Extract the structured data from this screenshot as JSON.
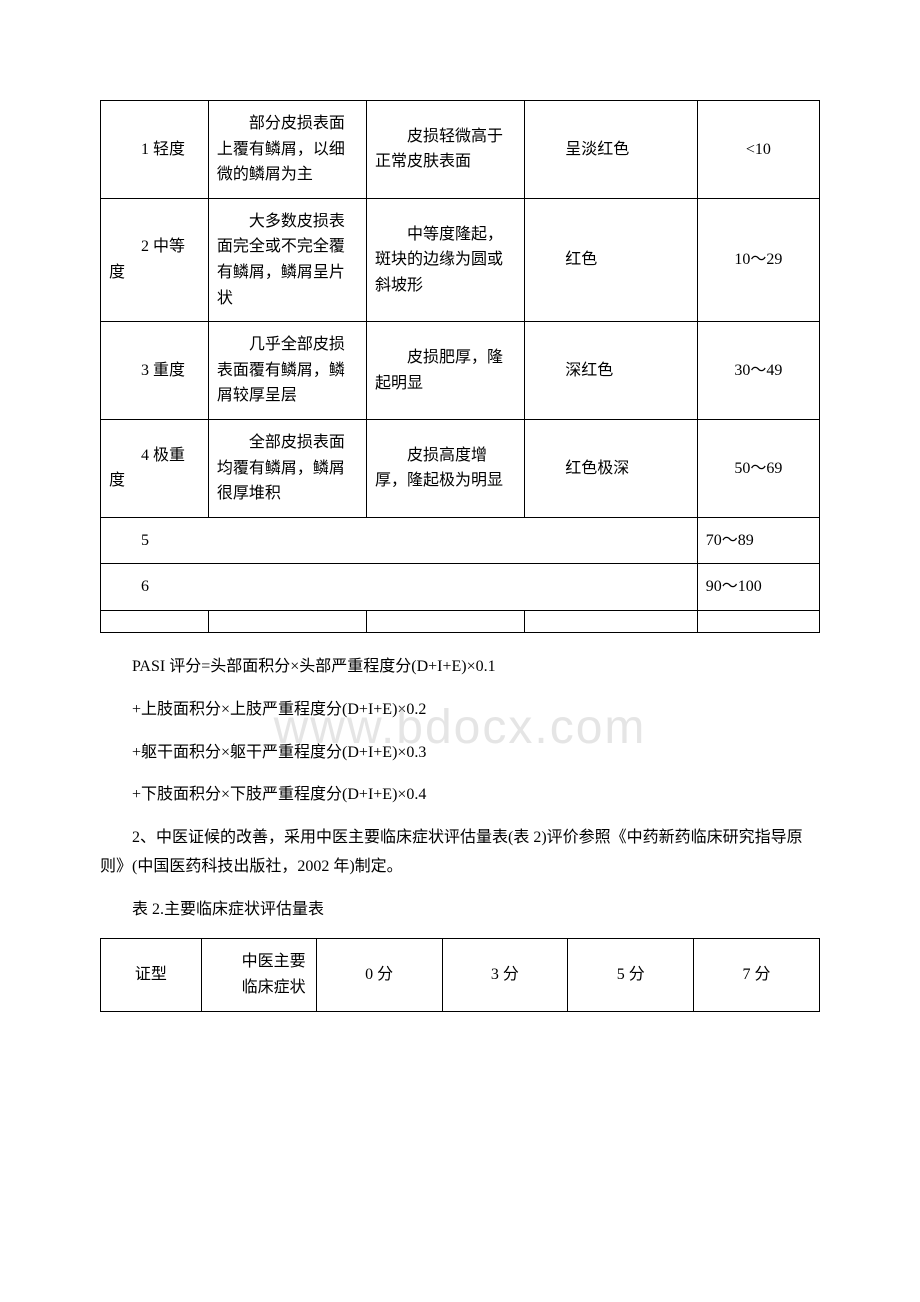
{
  "table1": {
    "rows": [
      {
        "c1": "　　1 轻度",
        "c2": "　　部分皮损表面上覆有鳞屑，以细微的鳞屑为主",
        "c3": "　　皮损轻微高于正常皮肤表面",
        "c4": "　　呈淡红色",
        "c5": "<10"
      },
      {
        "c1": "　　2 中等度",
        "c2": "　　大多数皮损表面完全或不完全覆有鳞屑，鳞屑呈片状",
        "c3": "　　中等度隆起，斑块的边缘为圆或斜坡形",
        "c4": "　　红色",
        "c5": "10～29"
      },
      {
        "c1": "　　3 重度",
        "c2": "　　几乎全部皮损表面覆有鳞屑，鳞屑较厚呈层",
        "c3": "　　皮损肥厚，隆起明显",
        "c4": "　　深红色",
        "c5": "30～49"
      },
      {
        "c1": "　　4 极重度",
        "c2": "　　全部皮损表面均覆有鳞屑，鳞屑很厚堆积",
        "c3": "　　皮损高度增厚，隆起极为明显",
        "c4": "　　红色极深",
        "c5": "50～69"
      },
      {
        "c1": "　　5",
        "c5": "70～89"
      },
      {
        "c1": "　　6",
        "c5": "90～100"
      }
    ]
  },
  "paragraphs": {
    "p1": "PASI 评分=头部面积分×头部严重程度分(D+I+E)×0.1",
    "p2": "+上肢面积分×上肢严重程度分(D+I+E)×0.2",
    "p3": "+躯干面积分×躯干严重程度分(D+I+E)×0.3",
    "p4": "+下肢面积分×下肢严重程度分(D+I+E)×0.4",
    "p5": "2、中医证候的改善，采用中医主要临床症状评估量表(表 2)评价参照《中药新药临床研究指导原则》(中国医药科技出版社，2002 年)制定。",
    "p6": "表 2.主要临床症状评估量表"
  },
  "table2": {
    "header": {
      "c1": "证型",
      "c2_line1": "　　中医主要",
      "c2_line2": "　　临床症状",
      "c3": "0 分",
      "c4": "3 分",
      "c5": "5 分",
      "c6": "7 分"
    }
  },
  "watermark": "www.bdocx.com"
}
